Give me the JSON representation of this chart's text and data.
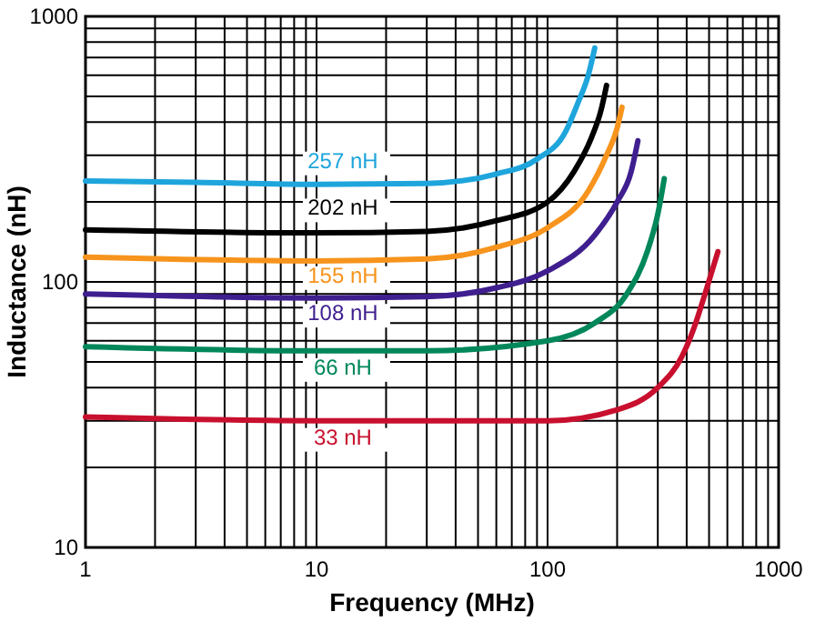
{
  "chart_data": {
    "type": "line",
    "xlabel": "Frequency (MHz)",
    "ylabel": "Inductance (nH)",
    "log": "xy",
    "grid": true,
    "marker": "none",
    "line_style": "solid",
    "xlim": [
      1,
      1000
    ],
    "ylim": [
      10,
      1000
    ],
    "xticks": [
      1,
      {
        "value": 2,
        "label": null
      },
      {
        "value": 3,
        "label": null
      },
      {
        "value": 4,
        "label": null
      },
      {
        "value": 5,
        "label": null
      },
      {
        "value": 6,
        "label": null
      },
      {
        "value": 7,
        "label": null
      },
      {
        "value": 8,
        "label": null
      },
      {
        "value": 9,
        "label": null
      },
      10,
      {
        "value": 20,
        "label": null
      },
      {
        "value": 30,
        "label": null
      },
      {
        "value": 40,
        "label": null
      },
      {
        "value": 50,
        "label": null
      },
      {
        "value": 60,
        "label": null
      },
      {
        "value": 70,
        "label": null
      },
      {
        "value": 80,
        "label": null
      },
      {
        "value": 90,
        "label": null
      },
      100,
      {
        "value": 200,
        "label": null
      },
      {
        "value": 300,
        "label": null
      },
      {
        "value": 400,
        "label": null
      },
      {
        "value": 500,
        "label": null
      },
      {
        "value": 600,
        "label": null
      },
      {
        "value": 700,
        "label": null
      },
      {
        "value": 800,
        "label": null
      },
      {
        "value": 900,
        "label": null
      },
      1000
    ],
    "yticks": [
      10,
      {
        "value": 20,
        "label": null
      },
      {
        "value": 30,
        "label": null
      },
      {
        "value": 40,
        "label": null
      },
      {
        "value": 50,
        "label": null
      },
      {
        "value": 60,
        "label": null
      },
      {
        "value": 70,
        "label": null
      },
      {
        "value": 80,
        "label": null
      },
      {
        "value": 90,
        "label": null
      },
      100,
      {
        "value": 200,
        "label": null
      },
      {
        "value": 300,
        "label": null
      },
      {
        "value": 400,
        "label": null
      },
      {
        "value": 500,
        "label": null
      },
      {
        "value": 600,
        "label": null
      },
      {
        "value": 700,
        "label": null
      },
      {
        "value": 800,
        "label": null
      },
      {
        "value": 900,
        "label": null
      },
      1000
    ],
    "series": [
      {
        "name": "257 nH",
        "color": "#1ea5dc",
        "x": [
          1,
          3,
          10,
          30,
          60,
          90,
          120,
          135,
          150,
          160
        ],
        "values": [
          240,
          237,
          233,
          235,
          255,
          290,
          370,
          470,
          600,
          760
        ]
      },
      {
        "name": "202 nH",
        "color": "#000000",
        "x": [
          1,
          10,
          30,
          60,
          100,
          130,
          155,
          170,
          180
        ],
        "values": [
          157,
          153,
          155,
          170,
          200,
          260,
          350,
          440,
          550
        ]
      },
      {
        "name": "155 nH",
        "color": "#f7941d",
        "x": [
          1,
          10,
          30,
          60,
          100,
          150,
          180,
          200,
          210
        ],
        "values": [
          124,
          120,
          122,
          135,
          160,
          220,
          300,
          380,
          455
        ]
      },
      {
        "name": "108 nH",
        "color": "#3f1f8f",
        "x": [
          1,
          10,
          30,
          60,
          100,
          160,
          200,
          230,
          246
        ],
        "values": [
          90,
          87,
          88,
          95,
          110,
          150,
          200,
          260,
          340
        ]
      },
      {
        "name": "66 nH",
        "color": "#00875a",
        "x": [
          1,
          10,
          30,
          100,
          160,
          220,
          270,
          300,
          320
        ],
        "values": [
          57,
          55,
          55,
          60,
          70,
          90,
          130,
          180,
          245
        ]
      },
      {
        "name": "33 nH",
        "color": "#c8102e",
        "x": [
          1,
          10,
          100,
          200,
          300,
          380,
          430,
          480,
          546
        ],
        "values": [
          31,
          30,
          30,
          33,
          40,
          52,
          67,
          90,
          130
        ]
      }
    ]
  }
}
